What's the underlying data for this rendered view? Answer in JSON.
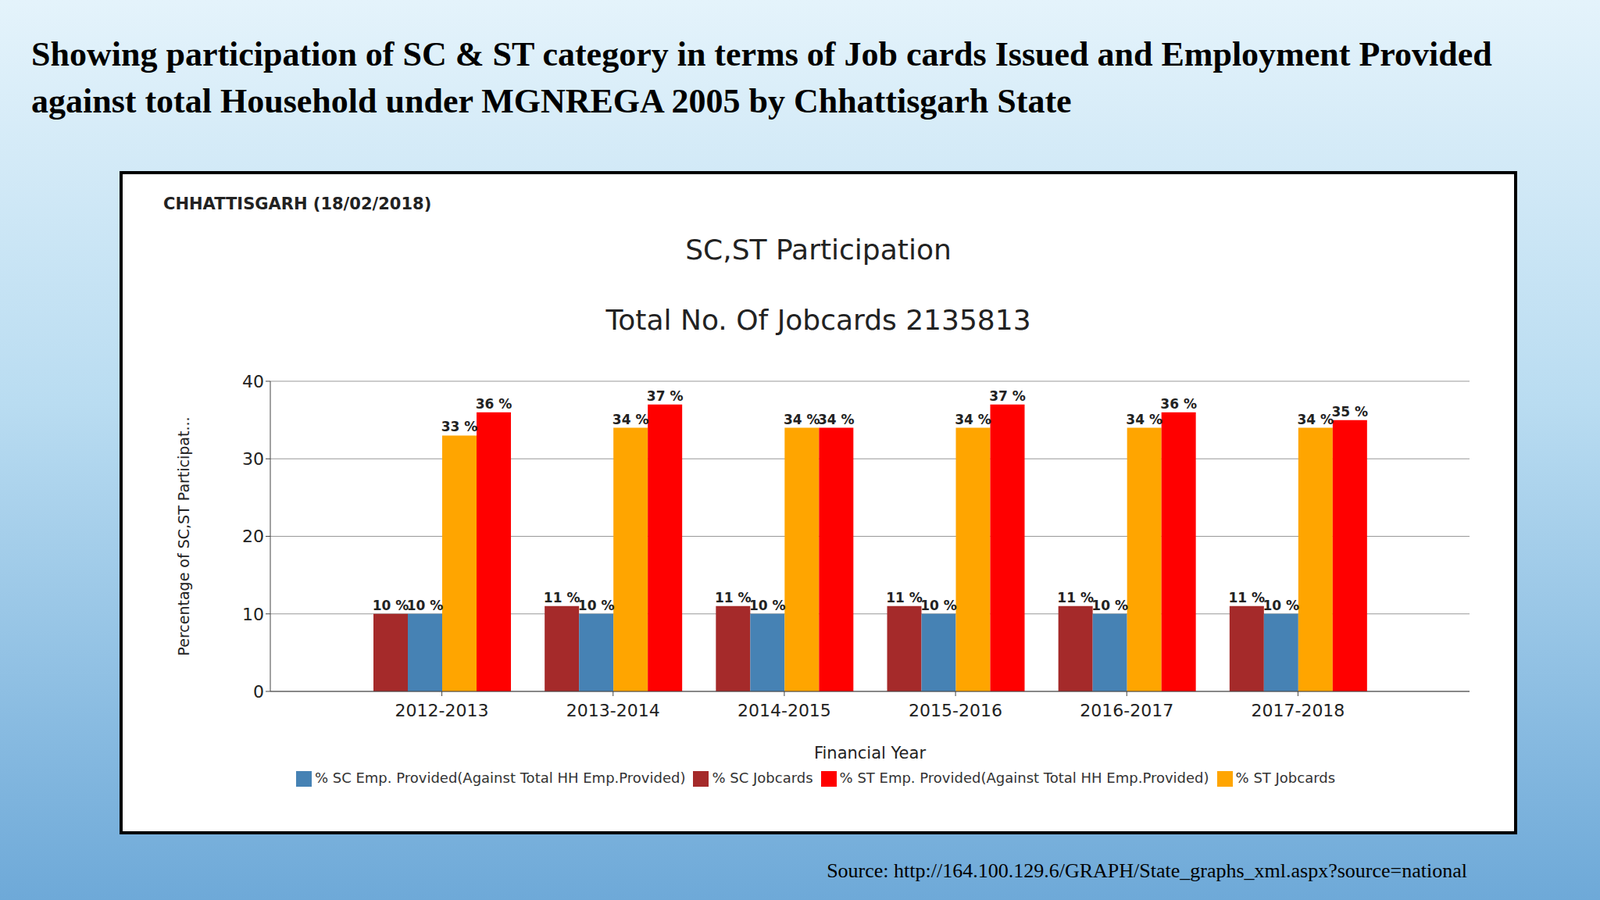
{
  "heading": "Showing participation of SC & ST category in terms of Job cards Issued and Employment Provided against total Household under MGNREGA 2005 by Chhattisgarh State",
  "source": "Source: http://164.100.129.6/GRAPH/State_graphs_xml.aspx?source=national",
  "chart_data": {
    "type": "bar",
    "annotations": [
      "CHHATTISGARH (18/02/2018)"
    ],
    "title": "SC,ST Participation",
    "subtitle": "Total No. Of Jobcards 2135813",
    "xlabel": "Financial Year",
    "ylabel": "Percentage of SC,ST Participat...",
    "categories": [
      "2012-2013",
      "2013-2014",
      "2014-2015",
      "2015-2016",
      "2016-2017",
      "2017-2018"
    ],
    "series": [
      {
        "name": "% SC Jobcards",
        "color": "#a52a2a",
        "values": [
          10,
          11,
          11,
          11,
          11,
          11
        ],
        "value_labels": [
          "10 %",
          "11 %",
          "11 %",
          "11 %",
          "11 %",
          "11 %"
        ]
      },
      {
        "name": "% SC Emp. Provided(Against Total HH Emp.Provided)",
        "color": "#4682b4",
        "values": [
          10,
          10,
          10,
          10,
          10,
          10
        ],
        "value_labels": [
          "10 %",
          "10 %",
          "10 %",
          "10 %",
          "10 %",
          "10 %"
        ]
      },
      {
        "name": "% ST Jobcards",
        "color": "#ffa500",
        "values": [
          33,
          34,
          34,
          34,
          34,
          34
        ],
        "value_labels": [
          "33 %",
          "34 %",
          "34 %",
          "34 %",
          "34 %",
          "34 %"
        ]
      },
      {
        "name": "% ST Emp. Provided(Against Total HH Emp.Provided)",
        "color": "#ff0000",
        "values": [
          36,
          37,
          34,
          37,
          36,
          35
        ],
        "value_labels": [
          "36 %",
          "37 %",
          "34 %",
          "37 %",
          "36 %",
          "35 %"
        ]
      }
    ],
    "ylim": [
      0,
      40
    ],
    "yticks": [
      0,
      10,
      20,
      30,
      40
    ],
    "grid": true,
    "legend": "bottom",
    "data_labels": true
  }
}
